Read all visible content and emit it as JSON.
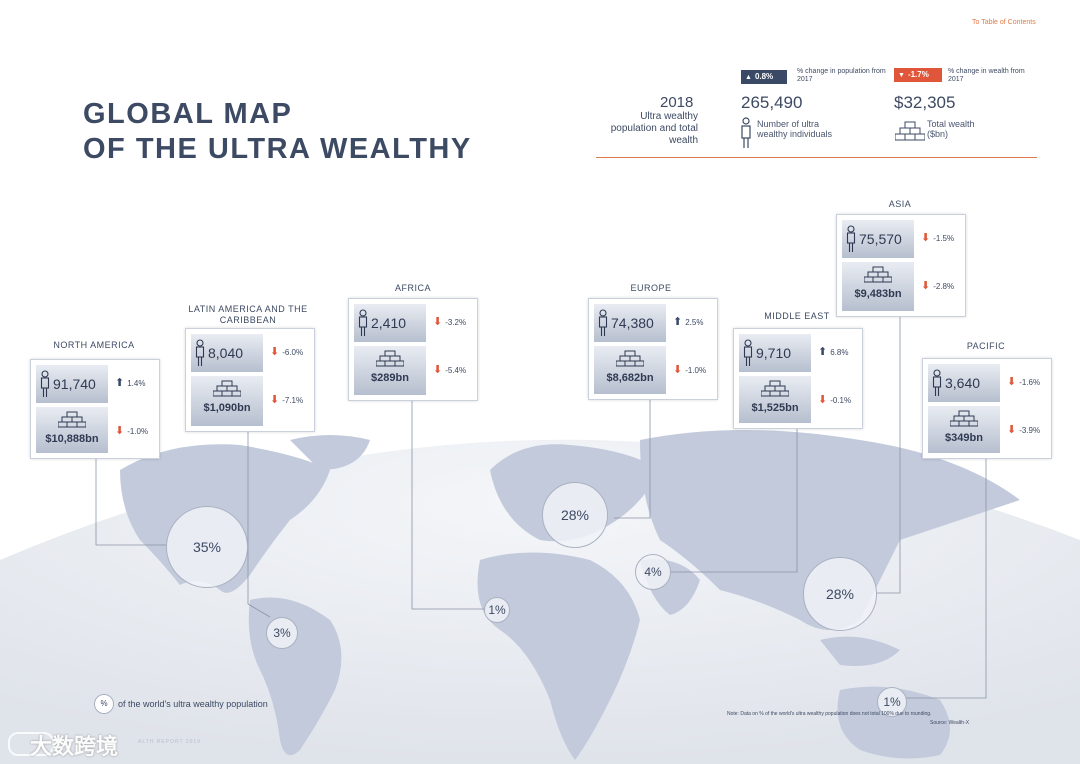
{
  "header": {
    "toc_link": "To Table of Contents",
    "title_line1": "GLOBAL MAP",
    "title_line2": "OF THE ULTRA WEALTHY"
  },
  "summary": {
    "year": "2018",
    "description": "Ultra wealthy population and total wealth",
    "population_change_badge": "0.8%",
    "population_change_label": "% change in population from 2017",
    "population": "265,490",
    "population_label": "Number of ultra wealthy individuals",
    "wealth_change_badge": "-1.7%",
    "wealth_change_label": "% change in wealth from 2017",
    "wealth": "$32,305",
    "wealth_label": "Total wealth ($bn)"
  },
  "regions": {
    "north_america": {
      "name": "NORTH AMERICA",
      "population": "91,740",
      "pop_change": "1.4%",
      "pop_dir": "up",
      "wealth": "$10,888bn",
      "wealth_change": "-1.0%",
      "wealth_dir": "down",
      "share": "35%"
    },
    "latin_america": {
      "name": "LATIN AMERICA AND THE CARIBBEAN",
      "population": "8,040",
      "pop_change": "-6.0%",
      "pop_dir": "down",
      "wealth": "$1,090bn",
      "wealth_change": "-7.1%",
      "wealth_dir": "down",
      "share": "3%"
    },
    "africa": {
      "name": "AFRICA",
      "population": "2,410",
      "pop_change": "-3.2%",
      "pop_dir": "down",
      "wealth": "$289bn",
      "wealth_change": "-5.4%",
      "wealth_dir": "down",
      "share": "1%"
    },
    "europe": {
      "name": "EUROPE",
      "population": "74,380",
      "pop_change": "2.5%",
      "pop_dir": "up",
      "wealth": "$8,682bn",
      "wealth_change": "-1.0%",
      "wealth_dir": "down",
      "share": "28%"
    },
    "middle_east": {
      "name": "MIDDLE EAST",
      "population": "9,710",
      "pop_change": "6.8%",
      "pop_dir": "up",
      "wealth": "$1,525bn",
      "wealth_change": "-0.1%",
      "wealth_dir": "down",
      "share": "4%"
    },
    "asia": {
      "name": "ASIA",
      "population": "75,570",
      "pop_change": "-1.5%",
      "pop_dir": "down",
      "wealth": "$9,483bn",
      "wealth_change": "-2.8%",
      "wealth_dir": "down",
      "share": "28%"
    },
    "pacific": {
      "name": "PACIFIC",
      "population": "3,640",
      "pop_change": "-1.6%",
      "pop_dir": "down",
      "wealth": "$349bn",
      "wealth_change": "-3.9%",
      "wealth_dir": "down",
      "share": "1%"
    }
  },
  "legend": {
    "symbol": "%",
    "text": "of the world's ultra wealthy population"
  },
  "footnote": {
    "note": "Note: Data on % of the world's ultra wealthy population does not total 100% due to rounding.",
    "source": "Source: Wealth-X",
    "footer": "ALTH REPORT 2019"
  },
  "watermark": "大数跨境",
  "icons": {
    "up": "arrow-up-icon",
    "down": "arrow-down-icon",
    "person": "person-icon",
    "gold": "gold-bars-icon"
  },
  "colors": {
    "navy": "#3d4a63",
    "accent": "#e07a48",
    "red_arrow": "#e0563a",
    "land": "#c2cadb",
    "globe": "#eceff4"
  }
}
